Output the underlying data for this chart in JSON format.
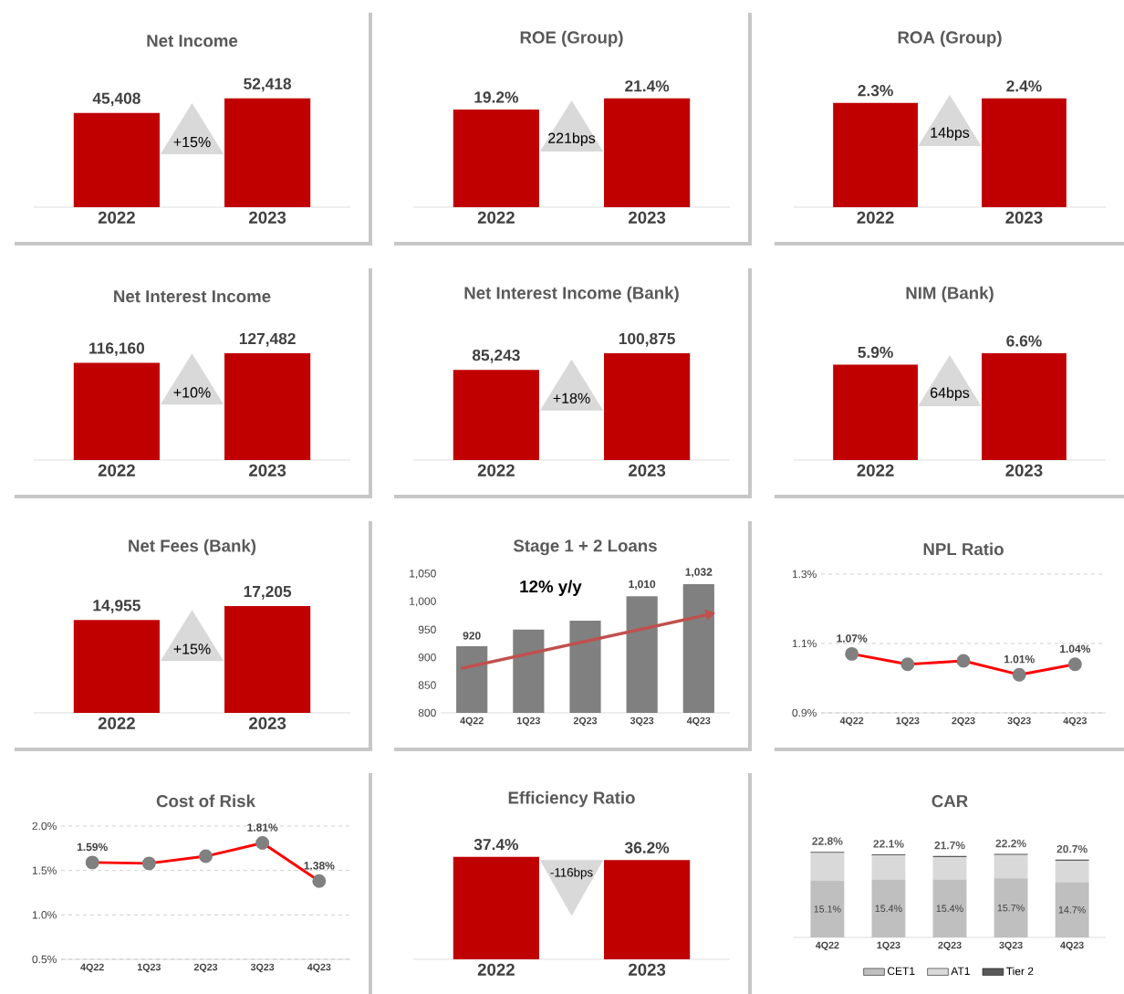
{
  "chart_data": [
    {
      "type": "bar",
      "title": "Net Income",
      "categories": [
        "2022",
        "2023"
      ],
      "values": [
        45408,
        52418
      ],
      "value_labels": [
        "45,408",
        "52,418"
      ],
      "color": "#c00000",
      "annotations": [
        "+15%"
      ]
    },
    {
      "type": "bar",
      "title": "ROE (Group)",
      "categories": [
        "2022",
        "2023"
      ],
      "values": [
        19.2,
        21.4
      ],
      "value_labels": [
        "19.2%",
        "21.4%"
      ],
      "color": "#c00000",
      "annotations": [
        "221bps"
      ]
    },
    {
      "type": "bar",
      "title": "ROA (Group)",
      "categories": [
        "2022",
        "2023"
      ],
      "values": [
        2.3,
        2.4
      ],
      "value_labels": [
        "2.3%",
        "2.4%"
      ],
      "color": "#c00000",
      "annotations": [
        "14bps"
      ]
    },
    {
      "type": "bar",
      "title": "Net Interest Income",
      "categories": [
        "2022",
        "2023"
      ],
      "values": [
        116160,
        127482
      ],
      "value_labels": [
        "116,160",
        "127,482"
      ],
      "color": "#c00000",
      "annotations": [
        "+10%"
      ]
    },
    {
      "type": "bar",
      "title": "Net Interest Income (Bank)",
      "categories": [
        "2022",
        "2023"
      ],
      "values": [
        85243,
        100875
      ],
      "value_labels": [
        "85,243",
        "100,875"
      ],
      "color": "#c00000",
      "annotations": [
        "+18%"
      ]
    },
    {
      "type": "bar",
      "title": "NIM (Bank)",
      "categories": [
        "2022",
        "2023"
      ],
      "values": [
        5.9,
        6.6
      ],
      "value_labels": [
        "5.9%",
        "6.6%"
      ],
      "color": "#c00000",
      "annotations": [
        "64bps"
      ]
    },
    {
      "type": "bar",
      "title": "Net Fees (Bank)",
      "categories": [
        "2022",
        "2023"
      ],
      "values": [
        14955,
        17205
      ],
      "value_labels": [
        "14,955",
        "17,205"
      ],
      "color": "#c00000",
      "annotations": [
        "+15%"
      ]
    },
    {
      "type": "bar",
      "title": "Stage 1 + 2 Loans",
      "categories": [
        "4Q22",
        "1Q23",
        "2Q23",
        "3Q23",
        "4Q23"
      ],
      "values": [
        920,
        950,
        966,
        1010,
        1032
      ],
      "value_labels": [
        "920",
        null,
        null,
        "1,010",
        "1,032"
      ],
      "color": "#808080",
      "annotations": [
        "12% y/y"
      ],
      "ylim": [
        800,
        1050
      ],
      "yticks": [
        {
          "value": 800,
          "label": "800"
        },
        {
          "value": 850,
          "label": "850"
        },
        {
          "value": 900,
          "label": "900"
        },
        {
          "value": 950,
          "label": "950"
        },
        {
          "value": 1000,
          "label": "1,000"
        },
        {
          "value": 1050,
          "label": "1,050"
        }
      ]
    },
    {
      "type": "line",
      "title": "NPL Ratio",
      "categories": [
        "4Q22",
        "1Q23",
        "2Q23",
        "3Q23",
        "4Q23"
      ],
      "values": [
        1.07,
        1.04,
        1.05,
        1.01,
        1.04
      ],
      "value_labels": [
        "1.07%",
        null,
        null,
        "1.01%",
        "1.04%"
      ],
      "color": "#ff0000",
      "marker": "circle",
      "grid": "y",
      "ylim": [
        0.9,
        1.3
      ],
      "yticks": [
        {
          "value": 0.9,
          "label": "0.9%"
        },
        {
          "value": 1.1,
          "label": "1.1%"
        },
        {
          "value": 1.3,
          "label": "1.3%"
        }
      ]
    },
    {
      "type": "line",
      "title": "Cost of Risk",
      "categories": [
        "4Q22",
        "1Q23",
        "2Q23",
        "3Q23",
        "4Q23"
      ],
      "values": [
        1.59,
        1.58,
        1.66,
        1.81,
        1.38
      ],
      "value_labels": [
        "1.59%",
        null,
        null,
        "1.81%",
        "1.38%"
      ],
      "color": "#ff0000",
      "marker": "circle",
      "grid": "y",
      "ylim": [
        0.5,
        2.0
      ],
      "yticks": [
        {
          "value": 0.5,
          "label": "0.5%"
        },
        {
          "value": 1.0,
          "label": "1.0%"
        },
        {
          "value": 1.5,
          "label": "1.5%"
        },
        {
          "value": 2.0,
          "label": "2.0%"
        }
      ]
    },
    {
      "type": "bar",
      "title": "Efficiency Ratio",
      "categories": [
        "2022",
        "2023"
      ],
      "values": [
        37.4,
        36.2
      ],
      "value_labels": [
        "37.4%",
        "36.2%"
      ],
      "color": "#c00000",
      "annotations": [
        "-116bps"
      ]
    },
    {
      "type": "bar",
      "title": "CAR",
      "stacked": true,
      "legend": "bottom",
      "categories": [
        "4Q22",
        "1Q23",
        "2Q23",
        "3Q23",
        "4Q23"
      ],
      "totals": [
        "22.8%",
        "22.1%",
        "21.7%",
        "22.2%",
        "20.7%"
      ],
      "series": [
        {
          "name": "CET1",
          "color": "#bfbfbf",
          "values": [
            15.1,
            15.4,
            15.4,
            15.7,
            14.7
          ],
          "value_labels": [
            "15.1%",
            "15.4%",
            "15.4%",
            "15.7%",
            "14.7%"
          ]
        },
        {
          "name": "AT1",
          "color": "#d9d9d9",
          "values": [
            7.4,
            6.4,
            6.0,
            6.2,
            5.7
          ]
        },
        {
          "name": "Tier 2",
          "color": "#595959",
          "values": [
            0.3,
            0.3,
            0.3,
            0.3,
            0.3
          ]
        }
      ]
    }
  ]
}
